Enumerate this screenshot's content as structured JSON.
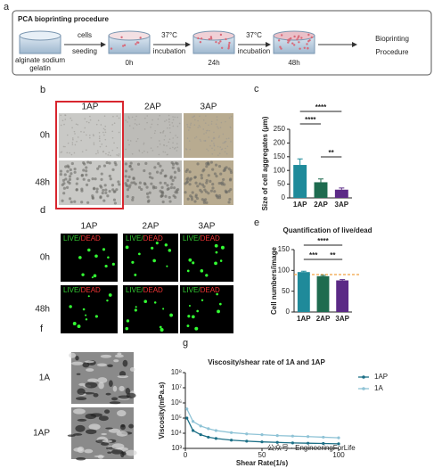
{
  "panels": {
    "a": {
      "label": "a",
      "title": "PCA bioprinting procedure",
      "start": [
        "alginate sodium",
        "gelatin"
      ],
      "step1": [
        "cells",
        "seeding"
      ],
      "t0": "0h",
      "step2": [
        "37°C",
        "incubation"
      ],
      "t1": "24h",
      "step3": [
        "37°C",
        "incubation"
      ],
      "t2": "48h",
      "end": [
        "Bioprinting",
        "Procedure"
      ]
    },
    "b": {
      "label": "b",
      "columns": [
        "1AP",
        "2AP",
        "3AP"
      ],
      "rows": [
        "0h",
        "48h"
      ]
    },
    "d": {
      "label": "d",
      "columns": [
        "1AP",
        "2AP",
        "3AP"
      ],
      "rows": [
        "0h",
        "48h"
      ],
      "stain_live": "LIVE/",
      "stain_dead": "DEAD"
    },
    "f": {
      "label": "f",
      "rows": [
        "1A",
        "1AP"
      ]
    },
    "watermark": "公众号 · EngineeringForLife"
  },
  "chart_data": [
    {
      "type": "bar",
      "panel_label": "c",
      "ylabel": "Size of cell aggregates (μm)",
      "categories": [
        "1AP",
        "2AP",
        "3AP"
      ],
      "values": [
        120,
        57,
        30
      ],
      "errors": [
        22,
        12,
        6
      ],
      "colors": [
        "#1f8a9a",
        "#1e6b4f",
        "#5b2a86"
      ],
      "ylim": [
        0,
        250
      ],
      "yticks": [
        0,
        50,
        100,
        150,
        200,
        250
      ],
      "significance": [
        "****",
        "****",
        "**"
      ]
    },
    {
      "type": "bar",
      "panel_label": "e",
      "title": "Quantification of live/dead",
      "ylabel": "Cell numbers/image",
      "categories": [
        "1AP",
        "2AP",
        "3AP"
      ],
      "values": [
        96,
        86,
        76
      ],
      "errors": [
        2,
        2,
        2
      ],
      "colors": [
        "#1f8a9a",
        "#1e6b4f",
        "#5b2a86"
      ],
      "ylim": [
        0,
        150
      ],
      "yticks": [
        0,
        50,
        100,
        150
      ],
      "reference_line": 90,
      "reference_color": "#f0a040",
      "significance": [
        "****",
        "***",
        "**"
      ]
    },
    {
      "type": "line",
      "panel_label": "g",
      "title": "Viscosity/shear rate of 1A and 1AP",
      "xlabel": "Shear Rate(1/s)",
      "ylabel": "Viscosity(mPa.s)",
      "log_y": true,
      "legend": "right",
      "x": [
        1,
        5,
        10,
        15,
        20,
        30,
        40,
        50,
        60,
        70,
        80,
        90,
        100
      ],
      "series": [
        {
          "name": "1AP",
          "color": "#1c6f86",
          "values": [
            100000,
            15000,
            8000,
            5500,
            4500,
            3500,
            3000,
            2700,
            2500,
            2300,
            2200,
            2100,
            2000
          ]
        },
        {
          "name": "1A",
          "color": "#8fc3d6",
          "values": [
            400000,
            60000,
            30000,
            20000,
            15000,
            11000,
            9000,
            8000,
            7000,
            6500,
            6000,
            5500,
            5000
          ]
        }
      ],
      "xlim": [
        0,
        100
      ],
      "xticks": [
        0,
        50,
        100
      ],
      "ylim": [
        1000,
        100000000
      ],
      "yticks": [
        {
          "value": 1000,
          "label": "10³"
        },
        {
          "value": 10000,
          "label": "10⁴"
        },
        {
          "value": 100000,
          "label": "10⁵"
        },
        {
          "value": 1000000,
          "label": "10⁶"
        },
        {
          "value": 10000000,
          "label": "10⁷"
        },
        {
          "value": 100000000,
          "label": "10⁸"
        }
      ]
    }
  ]
}
